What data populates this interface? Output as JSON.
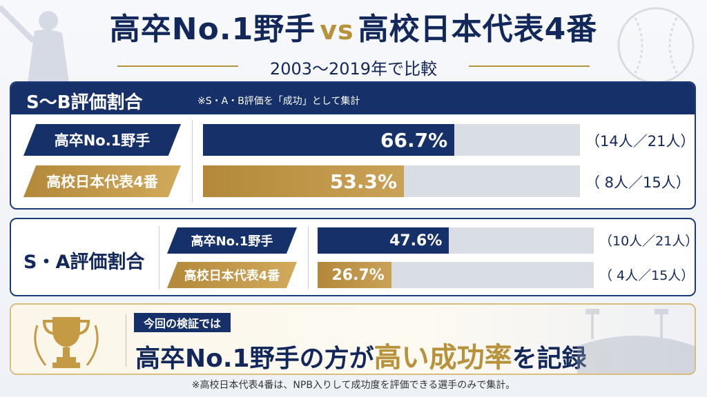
{
  "title": {
    "left": "高卒No.1野手",
    "vs": "vs",
    "right": "高校日本代表4番"
  },
  "subtitle": "2003〜2019年で比較",
  "sb_section": {
    "title": "S〜B評価割合",
    "note": "※S・A・B評価を「成功」として集計"
  },
  "sa_section": {
    "title": "S・A評価割合"
  },
  "chart_data": [
    {
      "type": "bar",
      "title": "S〜B評価割合",
      "categories": [
        "高卒No.1野手",
        "高校日本代表4番"
      ],
      "values": [
        66.7,
        53.3
      ],
      "value_labels": [
        "66.7%",
        "53.3%"
      ],
      "counts": [
        "（14人／21人）",
        "（ 8人／15人）"
      ],
      "ylim": [
        0,
        100
      ],
      "colors": [
        "#16306a",
        "#b8923a"
      ]
    },
    {
      "type": "bar",
      "title": "S・A評価割合",
      "categories": [
        "高卒No.1野手",
        "高校日本代表4番"
      ],
      "values": [
        47.6,
        26.7
      ],
      "value_labels": [
        "47.6%",
        "26.7%"
      ],
      "counts": [
        "（10人／21人）",
        "（ 4人／15人）"
      ],
      "ylim": [
        0,
        100
      ],
      "colors": [
        "#16306a",
        "#b8923a"
      ]
    }
  ],
  "conclusion": {
    "badge": "今回の検証では",
    "part1": "高卒No.1野手の方が",
    "highlight": "高い成功率",
    "part2": "を記録"
  },
  "footnote": "※高校日本代表4番は、NPB入りして成功度を評価できる選手のみで集計。"
}
